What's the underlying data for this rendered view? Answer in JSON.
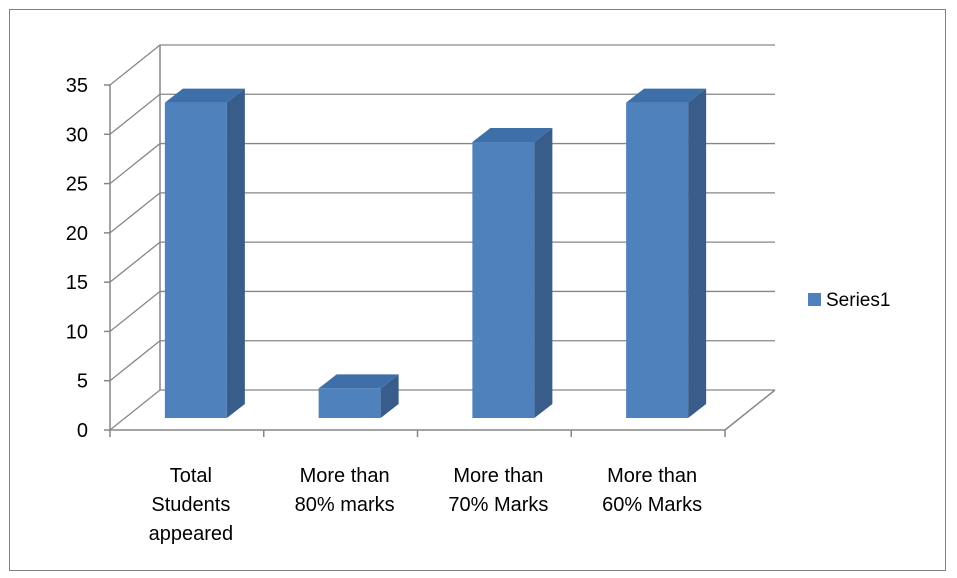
{
  "chart_data": {
    "type": "bar",
    "style": "3d-column",
    "categories": [
      [
        "Total",
        "Students",
        "appeared"
      ],
      [
        "More than",
        "80% marks"
      ],
      [
        "More than",
        "70% Marks"
      ],
      [
        "More than",
        "60% Marks"
      ]
    ],
    "series": [
      {
        "name": "Series1",
        "values": [
          32,
          3,
          28,
          32
        ],
        "color": "#4F81BD"
      }
    ],
    "ylim": [
      0,
      35
    ],
    "yticks": [
      0,
      5,
      10,
      15,
      20,
      25,
      30,
      35
    ],
    "grid": true,
    "legend": "right",
    "title": "",
    "xlabel": "",
    "ylabel": ""
  }
}
